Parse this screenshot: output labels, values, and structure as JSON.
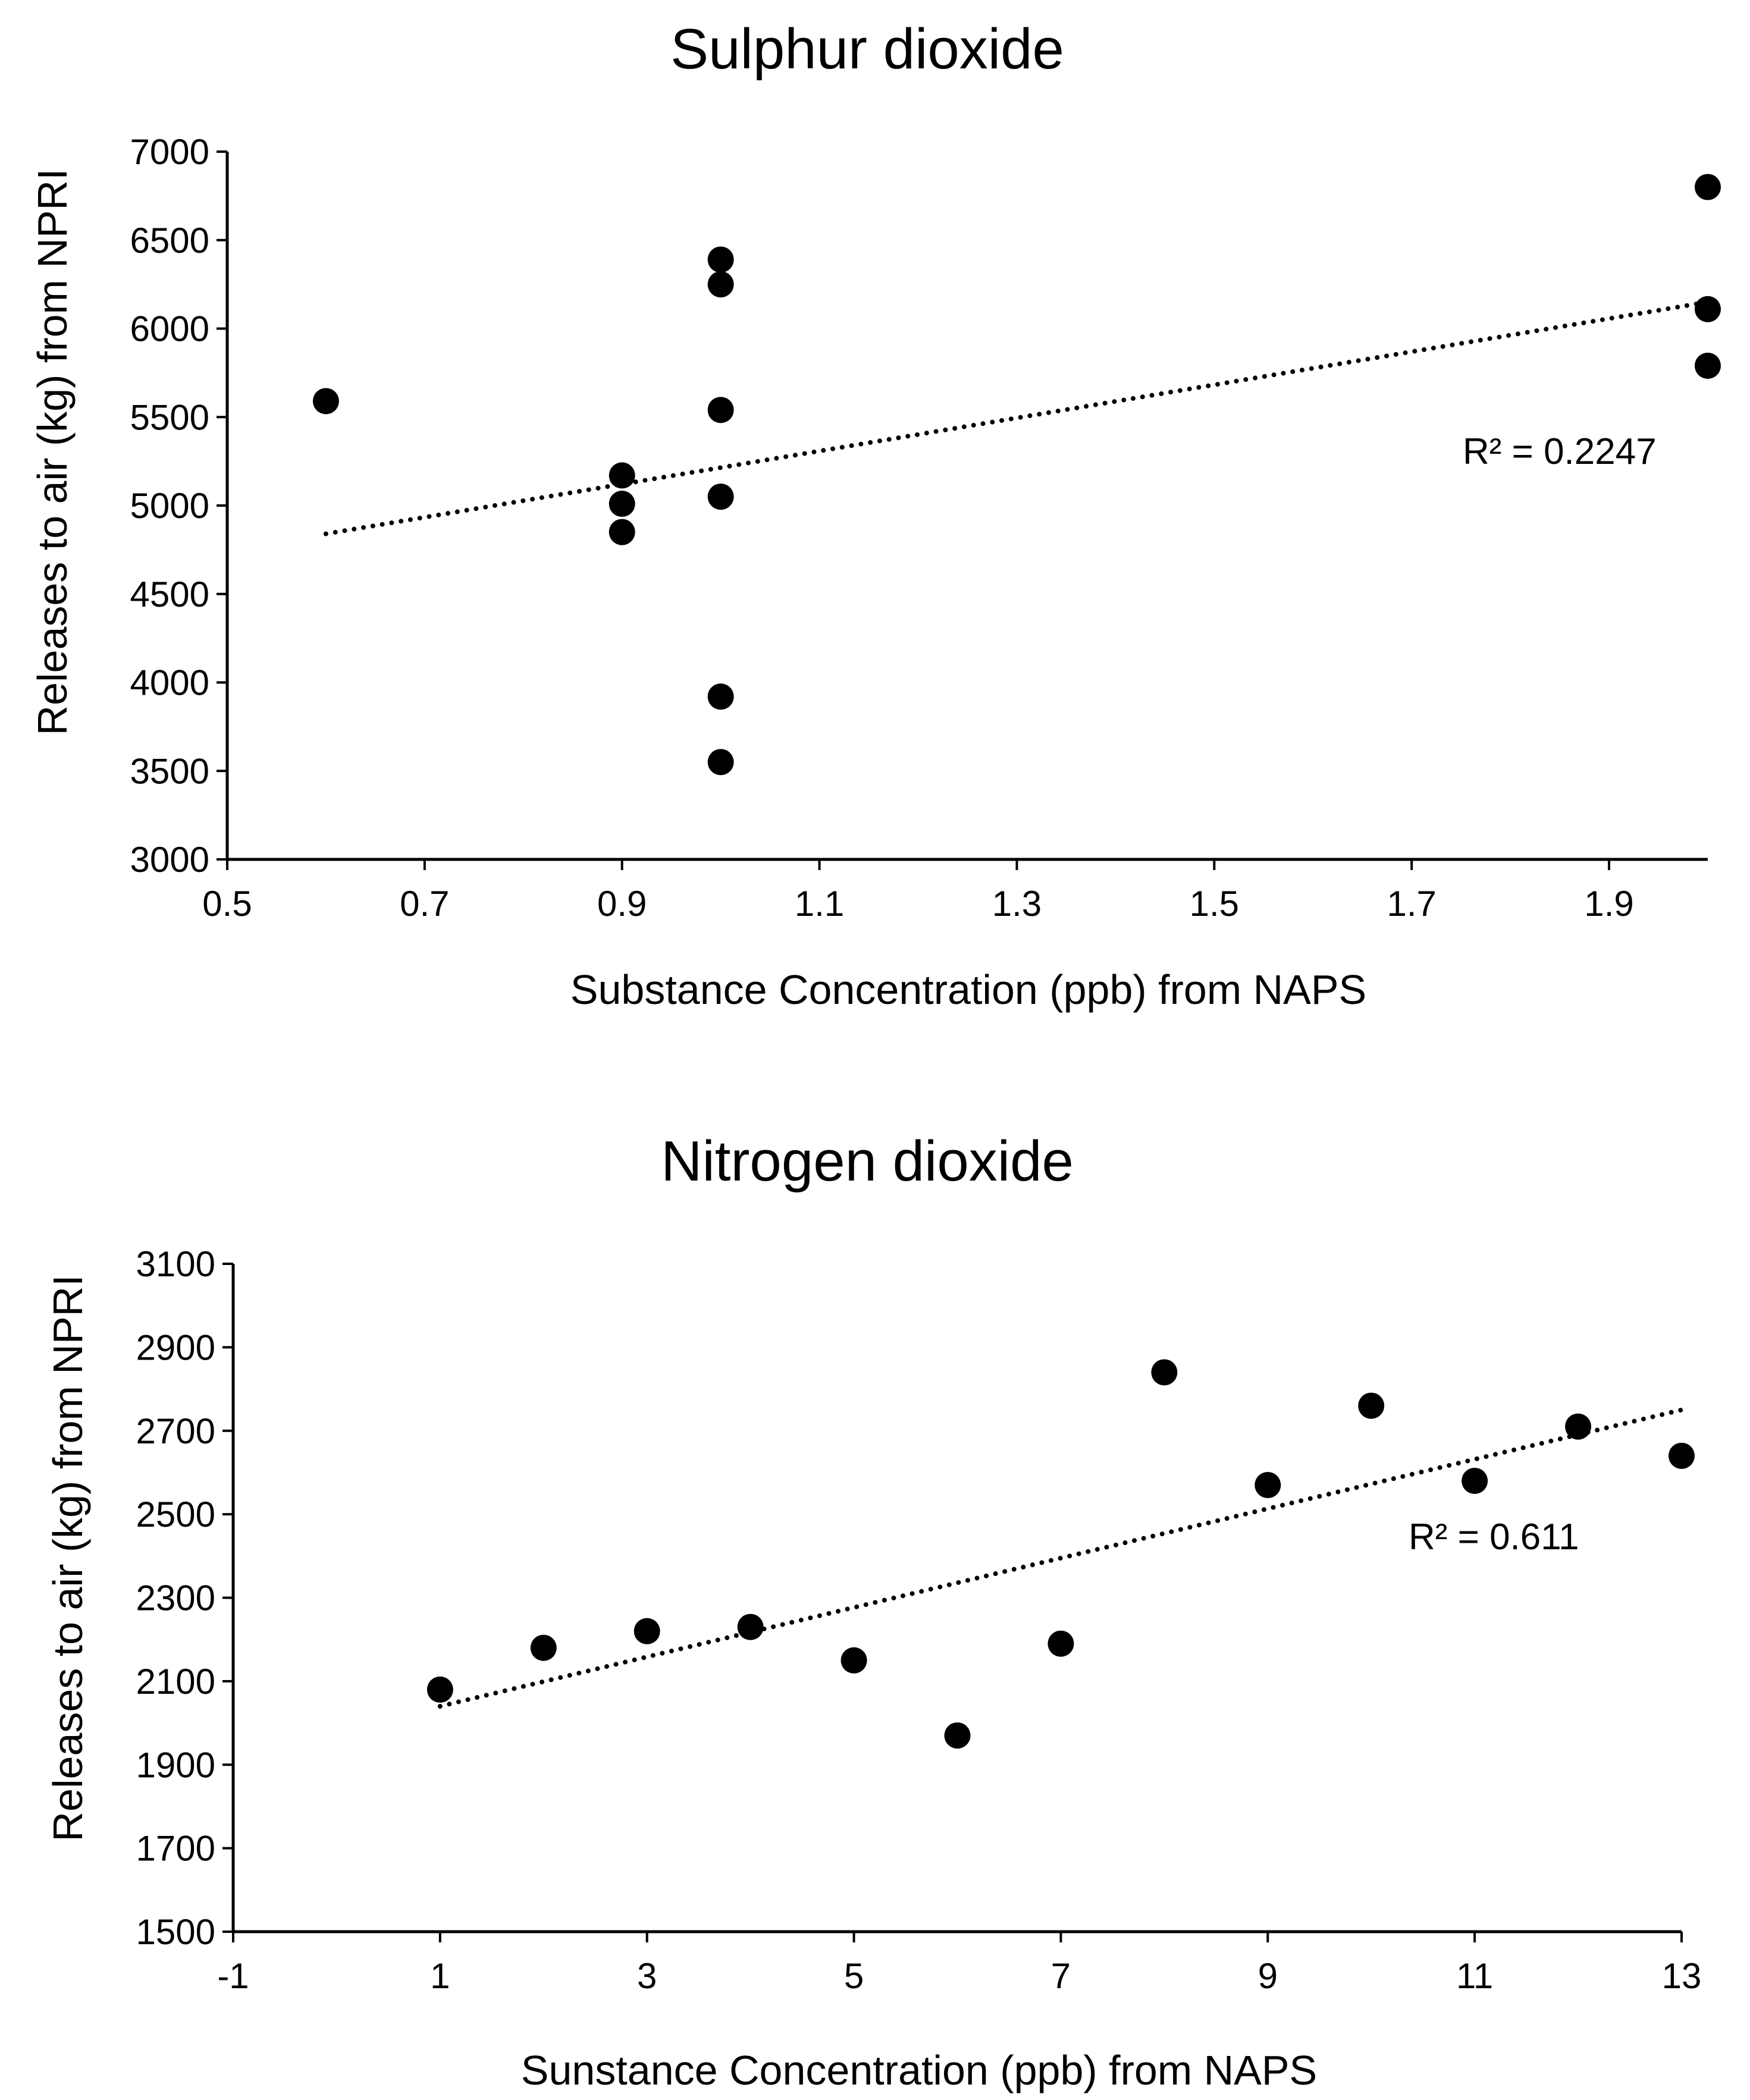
{
  "chart_data": [
    {
      "type": "scatter",
      "title": "Sulphur dioxide",
      "xlabel": "Substance Concentration (ppb) from NAPS",
      "ylabel": "Releases to air (kg) from NPRI",
      "xlim": [
        0.5,
        2.0
      ],
      "ylim": [
        3000,
        7000
      ],
      "xticks": [
        0.5,
        0.7,
        0.9,
        1.1,
        1.3,
        1.5,
        1.7,
        1.9
      ],
      "xtick_labels": [
        "0.5",
        "0.7",
        "0.9",
        "1.1",
        "1.3",
        "1.5",
        "1.7",
        "1.9"
      ],
      "yticks": [
        3000,
        3500,
        4000,
        4500,
        5000,
        5500,
        6000,
        6500,
        7000
      ],
      "ytick_labels": [
        "3000",
        "3500",
        "4000",
        "4500",
        "5000",
        "5500",
        "6000",
        "6500",
        "7000"
      ],
      "grid": false,
      "points": [
        {
          "x": 0.6,
          "y": 5590
        },
        {
          "x": 0.9,
          "y": 5170
        },
        {
          "x": 0.9,
          "y": 5010
        },
        {
          "x": 0.9,
          "y": 4850
        },
        {
          "x": 1.0,
          "y": 6390
        },
        {
          "x": 1.0,
          "y": 6250
        },
        {
          "x": 1.0,
          "y": 5540
        },
        {
          "x": 1.0,
          "y": 5050
        },
        {
          "x": 1.0,
          "y": 3920
        },
        {
          "x": 1.0,
          "y": 3550
        },
        {
          "x": 2.0,
          "y": 6800
        },
        {
          "x": 2.0,
          "y": 6110
        },
        {
          "x": 2.0,
          "y": 5790
        }
      ],
      "trendline": {
        "style": "dotted",
        "x": [
          0.6,
          2.0
        ],
        "y": [
          4840,
          6150
        ]
      },
      "annotation": "R² = 0.2247"
    },
    {
      "type": "scatter",
      "title": "Nitrogen dioxide",
      "xlabel": "Sunstance Concentration (ppb) from NAPS",
      "ylabel": "Releases to air (kg) from NPRI",
      "xlim": [
        -1,
        13
      ],
      "ylim": [
        1500,
        3100
      ],
      "xticks": [
        -1,
        1,
        3,
        5,
        7,
        9,
        11,
        13
      ],
      "xtick_labels": [
        "-1",
        "1",
        "3",
        "5",
        "7",
        "9",
        "11",
        "13"
      ],
      "yticks": [
        1500,
        1700,
        1900,
        2100,
        2300,
        2500,
        2700,
        2900,
        3100
      ],
      "ytick_labels": [
        "1500",
        "1700",
        "1900",
        "2100",
        "2300",
        "2500",
        "2700",
        "2900",
        "3100"
      ],
      "grid": false,
      "points": [
        {
          "x": 1,
          "y": 2080
        },
        {
          "x": 2,
          "y": 2180
        },
        {
          "x": 3,
          "y": 2220
        },
        {
          "x": 4,
          "y": 2230
        },
        {
          "x": 5,
          "y": 2150
        },
        {
          "x": 6,
          "y": 1970
        },
        {
          "x": 7,
          "y": 2190
        },
        {
          "x": 8,
          "y": 2840
        },
        {
          "x": 9,
          "y": 2570
        },
        {
          "x": 10,
          "y": 2760
        },
        {
          "x": 11,
          "y": 2580
        },
        {
          "x": 12,
          "y": 2710
        },
        {
          "x": 13,
          "y": 2640
        }
      ],
      "trendline": {
        "style": "dotted",
        "x": [
          1,
          13
        ],
        "y": [
          2040,
          2750
        ]
      },
      "annotation": "R² = 0.611"
    }
  ]
}
